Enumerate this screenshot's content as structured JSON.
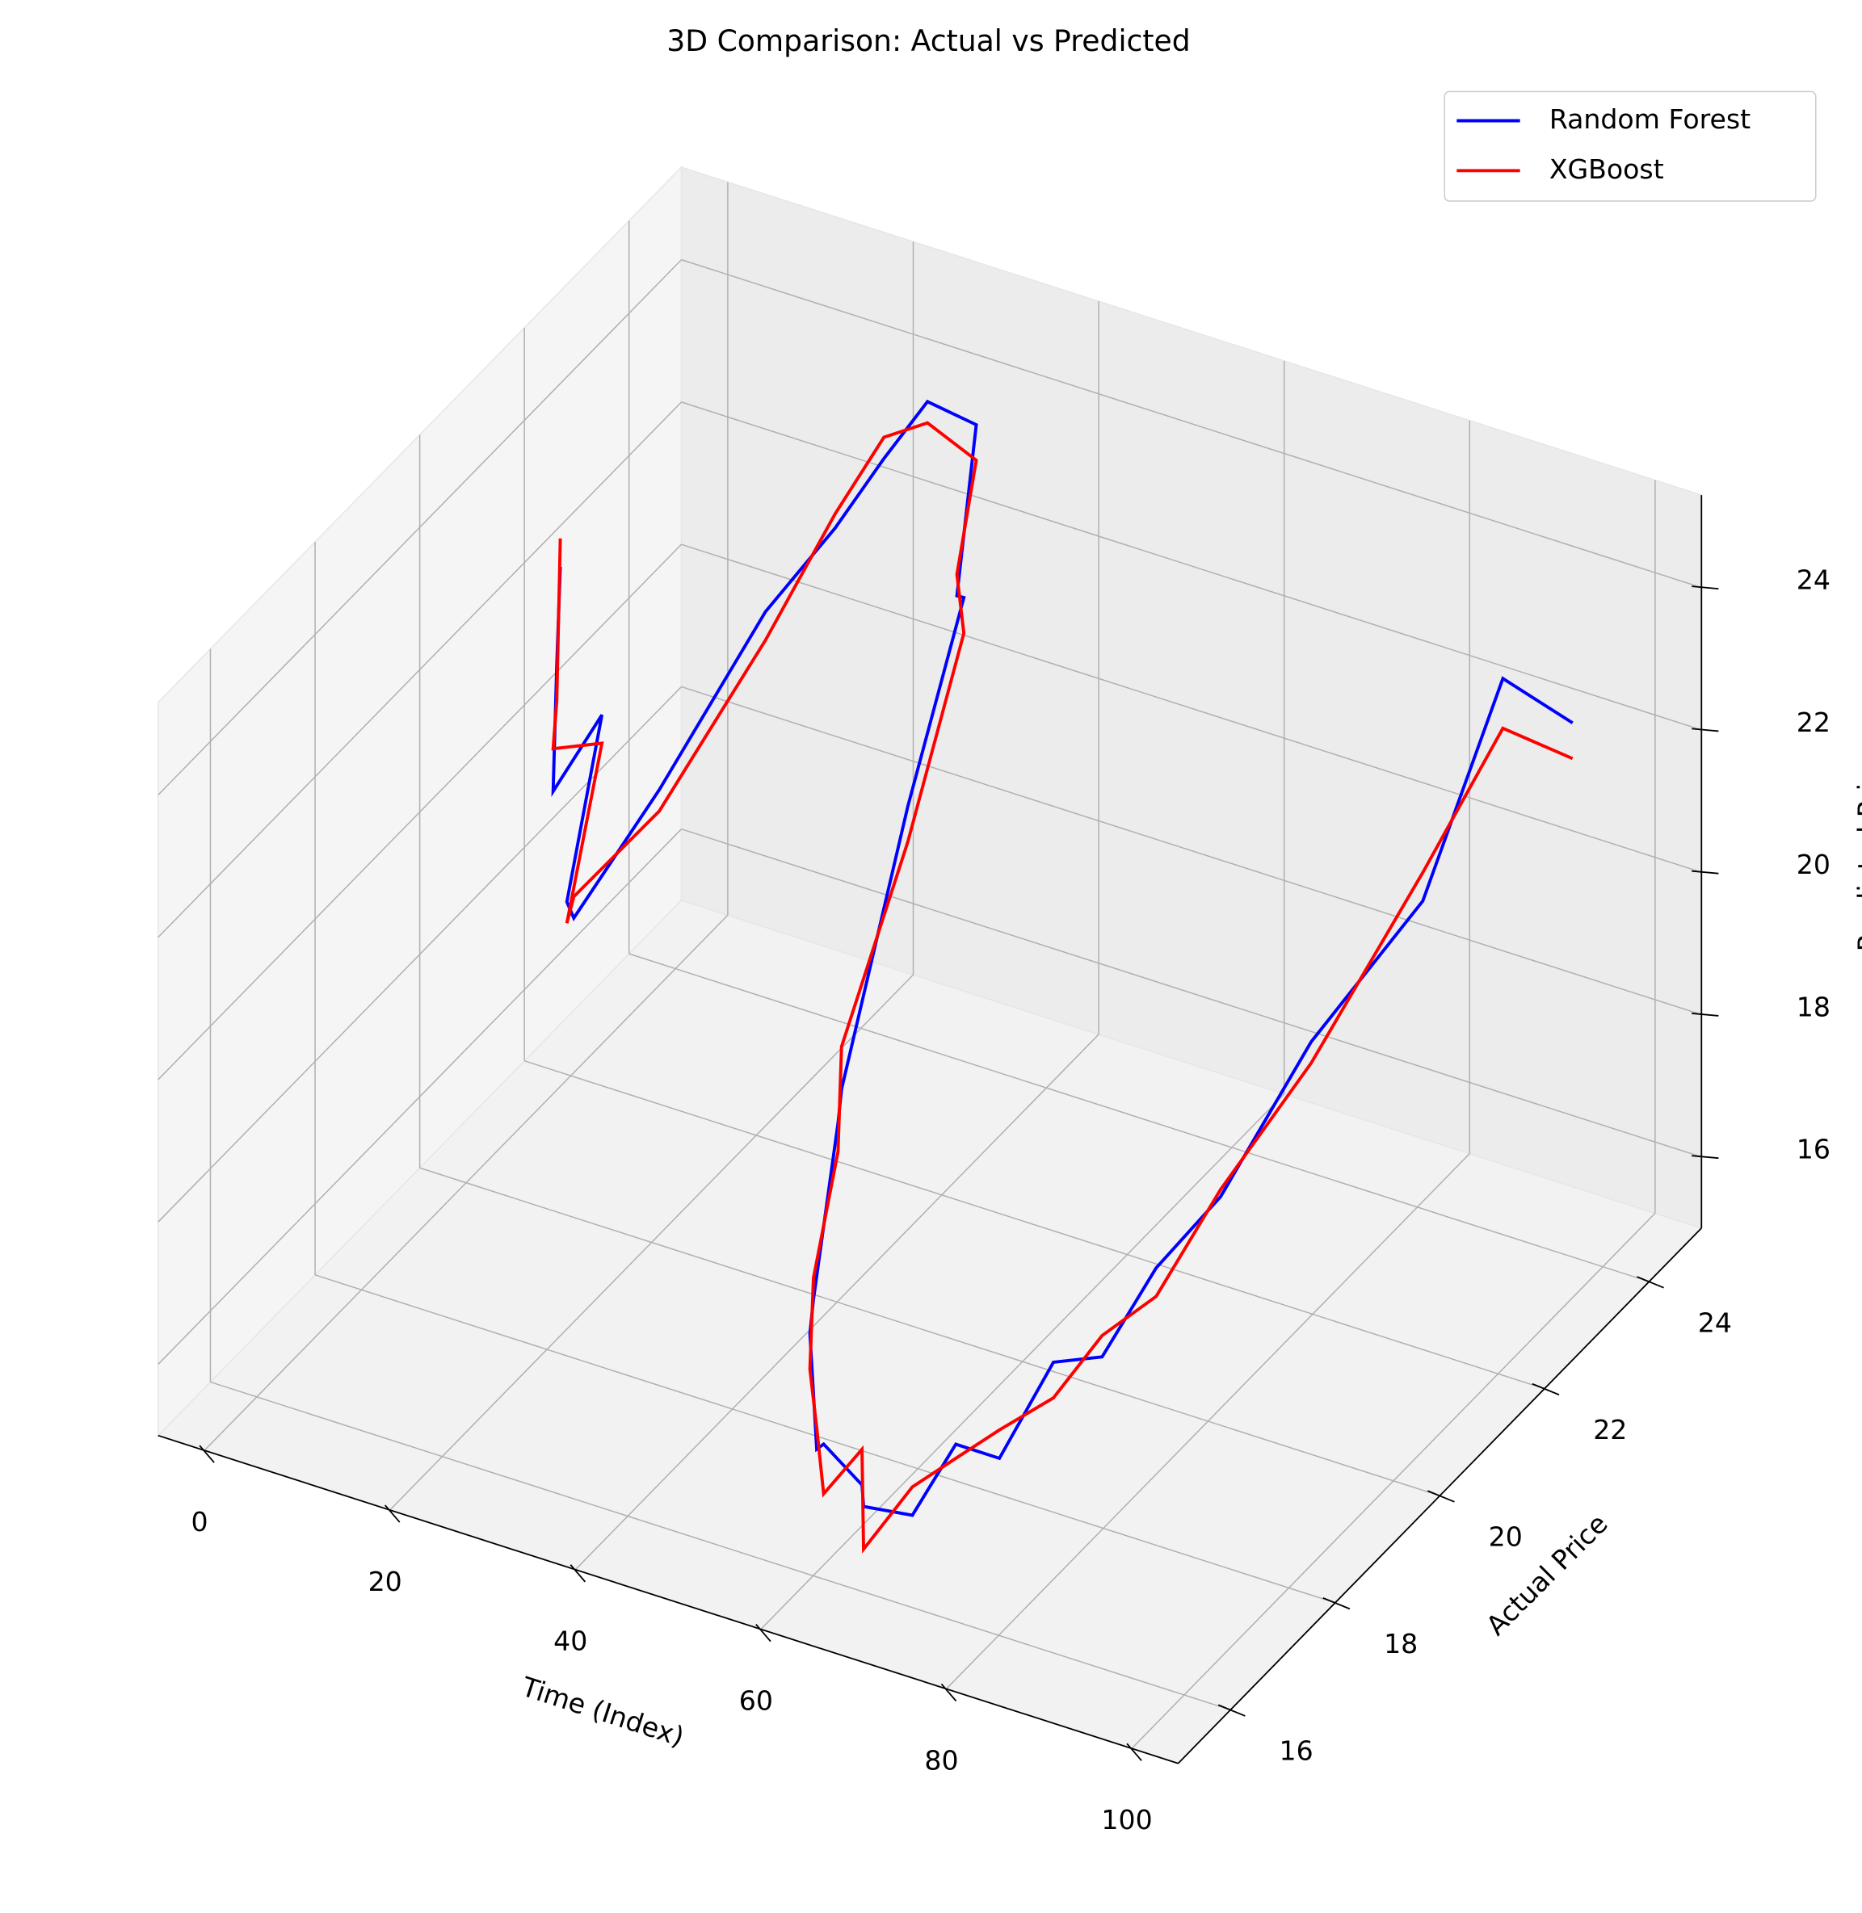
{
  "chart_data": {
    "type": "line3d",
    "title": "3D Comparison: Actual vs Predicted",
    "xlabel": "Time (Index)",
    "ylabel": "Actual Price",
    "zlabel": "Predicted Price",
    "x": [
      0,
      3,
      6,
      9,
      12,
      15,
      18,
      21,
      24,
      27,
      30,
      33,
      36,
      39,
      42,
      45,
      48,
      51,
      54,
      57,
      60,
      63,
      66,
      69,
      72,
      75,
      78,
      81,
      84,
      87,
      90,
      93,
      96,
      99
    ],
    "y": [
      21.8,
      21.2,
      20.6,
      21.0,
      19.8,
      19.4,
      20.5,
      22.0,
      22.8,
      23.2,
      23.5,
      23.9,
      23.0,
      22.6,
      21.0,
      19.2,
      18.6,
      17.6,
      17.0,
      16.6,
      16.2,
      16.4,
      15.9,
      16.3,
      16.6,
      16.9,
      17.4,
      17.8,
      18.3,
      19.0,
      20.2,
      21.8,
      22.8,
      23.6
    ],
    "series": [
      {
        "name": "Random Forest",
        "color": "#0000ff",
        "values": [
          22.3,
          21.5,
          20.3,
          21.2,
          19.6,
          19.8,
          20.9,
          22.4,
          23.1,
          23.9,
          24.6,
          24.1,
          22.5,
          22.9,
          21.3,
          18.8,
          18.9,
          17.3,
          17.4,
          16.2,
          16.7,
          16.1,
          16.3,
          16.0,
          16.9,
          16.6,
          17.7,
          17.6,
          18.6,
          19.2,
          20.6,
          21.5,
          24.0,
          22.9
        ]
      },
      {
        "name": "XGBoost",
        "color": "#ff0000",
        "values": [
          22.7,
          21.0,
          20.9,
          20.8,
          19.3,
          20.1,
          20.6,
          22.0,
          23.3,
          24.2,
          24.3,
          23.6,
          22.8,
          22.4,
          20.8,
          19.4,
          18.5,
          17.6,
          16.9,
          16.5,
          16.0,
          16.6,
          15.7,
          16.4,
          16.7,
          17.0,
          17.2,
          17.9,
          18.2,
          19.3,
          20.3,
          21.9,
          23.3,
          22.4
        ]
      }
    ],
    "xlim": [
      -5,
      105
    ],
    "ylim": [
      15,
      25
    ],
    "zlim": [
      15,
      25.3
    ],
    "xticks": [
      0,
      20,
      40,
      60,
      80,
      100
    ],
    "yticks": [
      16,
      18,
      20,
      22,
      24
    ],
    "zticks": [
      16,
      18,
      20,
      22,
      24
    ],
    "grid": true,
    "legend": "upper right"
  }
}
